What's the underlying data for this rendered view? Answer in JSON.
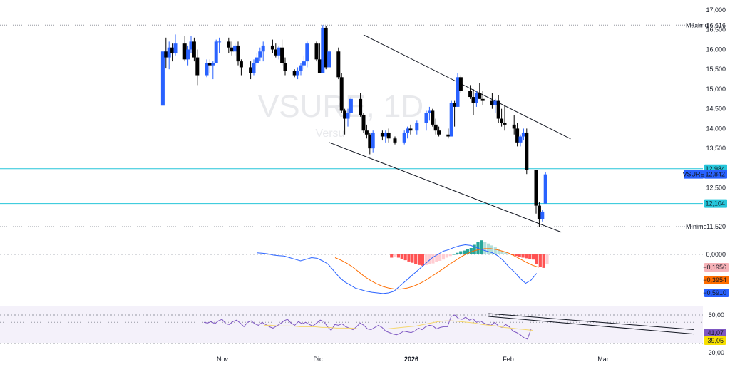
{
  "chart_data": {
    "type": "candlestick",
    "watermark": {
      "symbol": "VSURE, 1D",
      "name": "Versu"
    },
    "x_labels": [
      "Nov",
      "Dic",
      "2026",
      "Feb",
      "Mar"
    ],
    "price": {
      "y_ticks": [
        "17,000",
        "16,500",
        "16,000",
        "15,500",
        "15,000",
        "14,500",
        "14,000",
        "13,500",
        "12,500"
      ],
      "max": {
        "label": "Máximo",
        "value": "16,616",
        "v": 16616
      },
      "min": {
        "label": "Mínimo",
        "value": "11,520",
        "v": 11520
      },
      "last": {
        "label": "VSURE",
        "value": "12,842",
        "v": 12842,
        "color": "#2962ff"
      },
      "levels": [
        {
          "value": "12,984",
          "v": 12984,
          "color": "#26c6da"
        },
        {
          "value": "12,104",
          "v": 12104,
          "color": "#26c6da"
        }
      ],
      "channel": {
        "upper": [
          [
            "2025-12-16",
            16370
          ],
          [
            "2026-02-20",
            13740
          ]
        ],
        "lower": [
          [
            "2025-12-05",
            13650
          ],
          [
            "2026-02-17",
            11380
          ]
        ]
      },
      "candles": [
        [
          "2025-10-13",
          14580,
          15950,
          14580,
          15950
        ],
        [
          "2025-10-14",
          15950,
          16300,
          15520,
          15800
        ],
        [
          "2025-10-15",
          15800,
          16200,
          15500,
          16050
        ],
        [
          "2025-10-16",
          16050,
          16150,
          15700,
          15900
        ],
        [
          "2025-10-17",
          15900,
          16380,
          15850,
          16150
        ],
        [
          "2025-10-20",
          16150,
          16350,
          15700,
          15750
        ],
        [
          "2025-10-21",
          15750,
          16100,
          15600,
          16000
        ],
        [
          "2025-10-22",
          16000,
          16350,
          15900,
          16200
        ],
        [
          "2025-10-23",
          16200,
          16300,
          15700,
          15800
        ],
        [
          "2025-10-24",
          15800,
          16000,
          15100,
          15350
        ],
        [
          "2025-10-27",
          15350,
          15750,
          15300,
          15650
        ],
        [
          "2025-10-28",
          15650,
          15750,
          15400,
          15600
        ],
        [
          "2025-10-29",
          15600,
          15700,
          15250,
          15650
        ],
        [
          "2025-10-30",
          15650,
          16250,
          15650,
          16200
        ],
        [
          "2025-10-31",
          16200,
          16300,
          15900,
          16200
        ],
        [
          "2025-11-03",
          16200,
          16300,
          15900,
          16050
        ],
        [
          "2025-11-04",
          16050,
          16200,
          15850,
          15950
        ],
        [
          "2025-11-05",
          15950,
          16150,
          15850,
          16100
        ],
        [
          "2025-11-06",
          16100,
          16200,
          15600,
          15700
        ],
        [
          "2025-11-07",
          15700,
          15750,
          15350,
          15550
        ],
        [
          "2025-11-10",
          15550,
          15700,
          15250,
          15400
        ],
        [
          "2025-11-11",
          15400,
          15750,
          15350,
          15650
        ],
        [
          "2025-11-12",
          15650,
          15900,
          15600,
          15800
        ],
        [
          "2025-11-13",
          15800,
          16050,
          15700,
          15950
        ],
        [
          "2025-11-14",
          15950,
          16200,
          15700,
          16100
        ],
        [
          "2025-11-17",
          16100,
          16250,
          15900,
          16000
        ],
        [
          "2025-11-18",
          16000,
          16150,
          15800,
          15850
        ],
        [
          "2025-11-19",
          15850,
          16100,
          15750,
          16050
        ],
        [
          "2025-11-20",
          16050,
          16250,
          15600,
          15650
        ],
        [
          "2025-11-21",
          15650,
          15800,
          15350,
          15450
        ],
        [
          "2025-11-24",
          15450,
          15500,
          15300,
          15350
        ],
        [
          "2025-11-25",
          15350,
          15550,
          15250,
          15450
        ],
        [
          "2025-11-26",
          15450,
          15650,
          15350,
          15600
        ],
        [
          "2025-11-27",
          15600,
          15850,
          15500,
          15700
        ],
        [
          "2025-11-28",
          15700,
          16200,
          15550,
          16150
        ],
        [
          "2025-12-01",
          16150,
          16200,
          15700,
          15750
        ],
        [
          "2025-12-02",
          15750,
          16150,
          15400,
          15400
        ],
        [
          "2025-12-03",
          15400,
          16616,
          15400,
          16550
        ],
        [
          "2025-12-04",
          16550,
          16600,
          15500,
          15550
        ],
        [
          "2025-12-05",
          15550,
          16000,
          15550,
          15950
        ],
        [
          "2025-12-08",
          15950,
          16050,
          15250,
          15300
        ],
        [
          "2025-12-09",
          15300,
          15400,
          14400,
          14450
        ],
        [
          "2025-12-10",
          14450,
          14500,
          13850,
          14250
        ],
        [
          "2025-12-11",
          14250,
          14500,
          14050,
          14400
        ],
        [
          "2025-12-12",
          14400,
          14800,
          14300,
          14750
        ],
        [
          "2025-12-15",
          14750,
          14900,
          14300,
          14350
        ],
        [
          "2025-12-16",
          14350,
          14400,
          13900,
          13950
        ],
        [
          "2025-12-17",
          13950,
          14100,
          13750,
          13850
        ],
        [
          "2025-12-18",
          13850,
          13900,
          13350,
          13500
        ],
        [
          "2025-12-19",
          13500,
          13950,
          13400,
          13900
        ],
        [
          "2025-12-22",
          13900,
          13950,
          13700,
          13800
        ],
        [
          "2025-12-23",
          13800,
          13950,
          13650,
          13900
        ],
        [
          "2025-12-24",
          13900,
          14000,
          13650,
          13750
        ],
        [
          "2025-12-26",
          13750,
          13800,
          13600,
          13650
        ],
        [
          "2025-12-29",
          13650,
          13950,
          13600,
          13900
        ],
        [
          "2025-12-30",
          13900,
          14050,
          13750,
          14000
        ],
        [
          "2025-12-31",
          14000,
          14100,
          13850,
          13950
        ],
        [
          "2026-01-02",
          13950,
          14200,
          13850,
          14150
        ],
        [
          "2026-01-05",
          14150,
          14450,
          13950,
          14400
        ],
        [
          "2026-01-06",
          14400,
          14550,
          14200,
          14450
        ],
        [
          "2026-01-07",
          14450,
          14500,
          14050,
          14100
        ],
        [
          "2026-01-08",
          14100,
          14250,
          13850,
          13950
        ],
        [
          "2026-01-09",
          13950,
          14050,
          13800,
          13850
        ],
        [
          "2026-01-12",
          13850,
          14000,
          13750,
          13800
        ],
        [
          "2026-01-13",
          13800,
          14700,
          13800,
          14650
        ],
        [
          "2026-01-14",
          14650,
          14700,
          14050,
          14550
        ],
        [
          "2026-01-15",
          14550,
          15400,
          14550,
          15300
        ],
        [
          "2026-01-16",
          15300,
          15350,
          14900,
          14950
        ],
        [
          "2026-01-19",
          14950,
          15100,
          14750,
          14800
        ],
        [
          "2026-01-20",
          14800,
          15000,
          14350,
          14650
        ],
        [
          "2026-01-21",
          14650,
          14950,
          14550,
          14900
        ],
        [
          "2026-01-22",
          14900,
          15150,
          14750,
          14750
        ],
        [
          "2026-01-23",
          14750,
          14950,
          14600,
          14700
        ],
        [
          "2026-01-26",
          14700,
          14900,
          14500,
          14600
        ],
        [
          "2026-01-27",
          14600,
          14750,
          14400,
          14700
        ],
        [
          "2026-01-28",
          14700,
          14850,
          14150,
          14250
        ],
        [
          "2026-01-29",
          14250,
          14500,
          14050,
          14150
        ],
        [
          "2026-01-30",
          14150,
          14600,
          13950,
          14100
        ],
        [
          "2026-02-02",
          14100,
          14350,
          13850,
          14000
        ],
        [
          "2026-02-03",
          14000,
          14150,
          13550,
          13650
        ],
        [
          "2026-02-04",
          13650,
          13850,
          13550,
          13800
        ],
        [
          "2026-02-05",
          13800,
          14000,
          13700,
          13900
        ],
        [
          "2026-02-06",
          13900,
          14000,
          12850,
          12950
        ],
        [
          "2026-02-09",
          12950,
          12950,
          11850,
          12050
        ],
        [
          "2026-02-10",
          12050,
          12150,
          11520,
          11700
        ],
        [
          "2026-02-11",
          11700,
          11950,
          11650,
          11900
        ],
        [
          "2026-02-12",
          12104,
          12900,
          12104,
          12842
        ]
      ]
    },
    "macd": {
      "y_ticks": [
        "0,0000"
      ],
      "badges": [
        {
          "value": "−0,1956",
          "color": "#f7b3b8",
          "text_color": "#131722"
        },
        {
          "value": "−0,3954",
          "color": "#ff6d00",
          "text_color": "#ffffff"
        },
        {
          "value": "−0,5910",
          "color": "#2962ff",
          "text_color": "#ffffff"
        }
      ],
      "hist": [
        0.0,
        0.0,
        0.0,
        0.0,
        0.0,
        0.0,
        0.0,
        0.0,
        0.0,
        0.0,
        0.0,
        0.0,
        0.0,
        0.0,
        0.0,
        0.0,
        0.0,
        0.0,
        0.0,
        0.0,
        0.0,
        0.0,
        0.0,
        0.0,
        0.0,
        0.0,
        0.0,
        0.0,
        0.0,
        0.0,
        0.0,
        0.0,
        0.0,
        0.0,
        0.0,
        0.0,
        0.0,
        0.0,
        0.0,
        -0.1,
        -0.08,
        -0.1,
        -0.14,
        -0.18,
        -0.22,
        -0.26,
        -0.3,
        -0.33,
        -0.35,
        -0.33,
        -0.3,
        -0.28,
        -0.24,
        -0.2,
        -0.16,
        -0.1,
        -0.05,
        0.01,
        0.05,
        0.1,
        0.12,
        0.16,
        0.2,
        0.3,
        0.38,
        0.44,
        0.4,
        0.34,
        0.28,
        0.22,
        0.16,
        0.1,
        0.06,
        0.02,
        -0.02,
        -0.05,
        -0.08,
        -0.1,
        -0.12,
        -0.14,
        -0.16,
        -0.3,
        -0.4,
        -0.42,
        -0.3
      ],
      "macd_line": [
        0.05,
        0.04,
        0.02,
        -0.02,
        -0.04,
        -0.05,
        -0.1,
        -0.15,
        -0.2,
        -0.15,
        -0.1,
        -0.12,
        -0.2,
        -0.3,
        -0.5,
        -0.7,
        -0.85,
        -0.95,
        -1.05,
        -1.1,
        -1.15,
        -1.18,
        -1.2,
        -1.22,
        -1.2,
        -1.15,
        -1.0,
        -0.85,
        -0.7,
        -0.55,
        -0.4,
        -0.25,
        -0.1,
        0.0,
        0.1,
        0.15,
        0.22,
        0.27,
        0.3,
        0.28,
        0.22,
        0.15,
        0.1,
        0.05,
        -0.05,
        -0.2,
        -0.4,
        -0.55,
        -0.75,
        -0.9,
        -0.8,
        -0.59
      ],
      "signal_line": [
        -0.1,
        -0.18,
        -0.28,
        -0.4,
        -0.55,
        -0.7,
        -0.82,
        -0.92,
        -1.0,
        -1.05,
        -1.08,
        -1.08,
        -1.05,
        -1.0,
        -0.92,
        -0.82,
        -0.7,
        -0.58,
        -0.45,
        -0.32,
        -0.2,
        -0.08,
        0.02,
        0.1,
        0.15,
        0.18,
        0.18,
        0.15,
        0.1,
        0.04,
        -0.05,
        -0.15,
        -0.25,
        -0.34,
        -0.4
      ]
    },
    "rsi": {
      "y_ticks": [
        "60,00",
        "20,00"
      ],
      "badges": [
        {
          "value": "41,07",
          "color": "#7e57c2"
        },
        {
          "value": "39,05",
          "color": "#f7e000"
        }
      ],
      "rsi_line": [
        50,
        49,
        51,
        48,
        52,
        54,
        48,
        47,
        51,
        53,
        49,
        44,
        50,
        52,
        48,
        46,
        50,
        47,
        44,
        42,
        45,
        48,
        52,
        54,
        49,
        46,
        51,
        48,
        50,
        47,
        45,
        49,
        53,
        51,
        44,
        39,
        47,
        46,
        48,
        44,
        42,
        40,
        44,
        49,
        46,
        41,
        40,
        43,
        46,
        43,
        38,
        36,
        34,
        33,
        35,
        38,
        37,
        36,
        38,
        42,
        40,
        44,
        46,
        45,
        41,
        43,
        44,
        44,
        58,
        60,
        55,
        54,
        57,
        53,
        55,
        50,
        52,
        49,
        47,
        46,
        50,
        45,
        43,
        47,
        44,
        38,
        36,
        33,
        29,
        27,
        41
      ],
      "ma_line": [
        46,
        46,
        45,
        45,
        45,
        44,
        44,
        44,
        43,
        43,
        42,
        42,
        42,
        41,
        41,
        41,
        41,
        41,
        42,
        43,
        44,
        45,
        47,
        49,
        51,
        52,
        52,
        51,
        50,
        49,
        47,
        46,
        45,
        43,
        42,
        41,
        40,
        39
      ],
      "channel_upper": [
        [
          38,
          62
        ],
        [
          65,
          40
        ]
      ],
      "channel_lower": [
        [
          38,
          58
        ],
        [
          65,
          34
        ]
      ]
    }
  }
}
